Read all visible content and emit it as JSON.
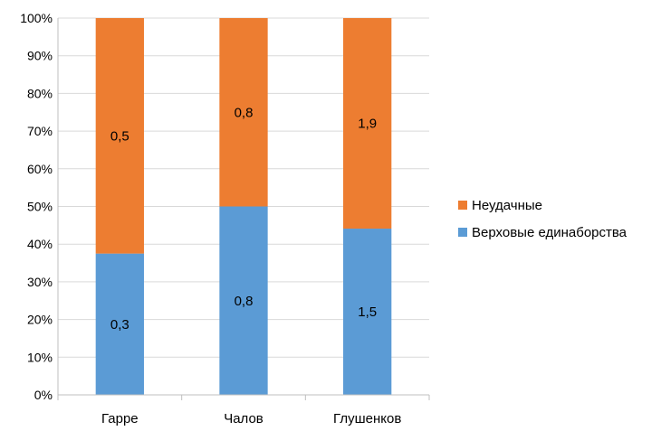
{
  "chart_data": {
    "type": "bar",
    "stacked": "percent",
    "categories": [
      "Гарре",
      "Чалов",
      "Глушенков"
    ],
    "series": [
      {
        "name": "Верховые единаборства",
        "values": [
          0.3,
          0.8,
          1.5
        ],
        "labels": [
          "0,3",
          "0,8",
          "1,5"
        ],
        "color": "#5b9bd5"
      },
      {
        "name": "Неудачные",
        "values": [
          0.5,
          0.8,
          1.9
        ],
        "labels": [
          "0,5",
          "0,8",
          "1,9"
        ],
        "color": "#ed7d31"
      }
    ],
    "y_ticks": [
      "0%",
      "10%",
      "20%",
      "30%",
      "40%",
      "50%",
      "60%",
      "70%",
      "80%",
      "90%",
      "100%"
    ],
    "ylim": [
      0,
      100
    ],
    "grid": true,
    "legend_position": "right",
    "legend_order": [
      "Неудачные",
      "Верховые единаборства"
    ],
    "colors": {
      "grid": "#d9d9d9",
      "axis": "#bfbfbf",
      "text": "#000000"
    }
  }
}
